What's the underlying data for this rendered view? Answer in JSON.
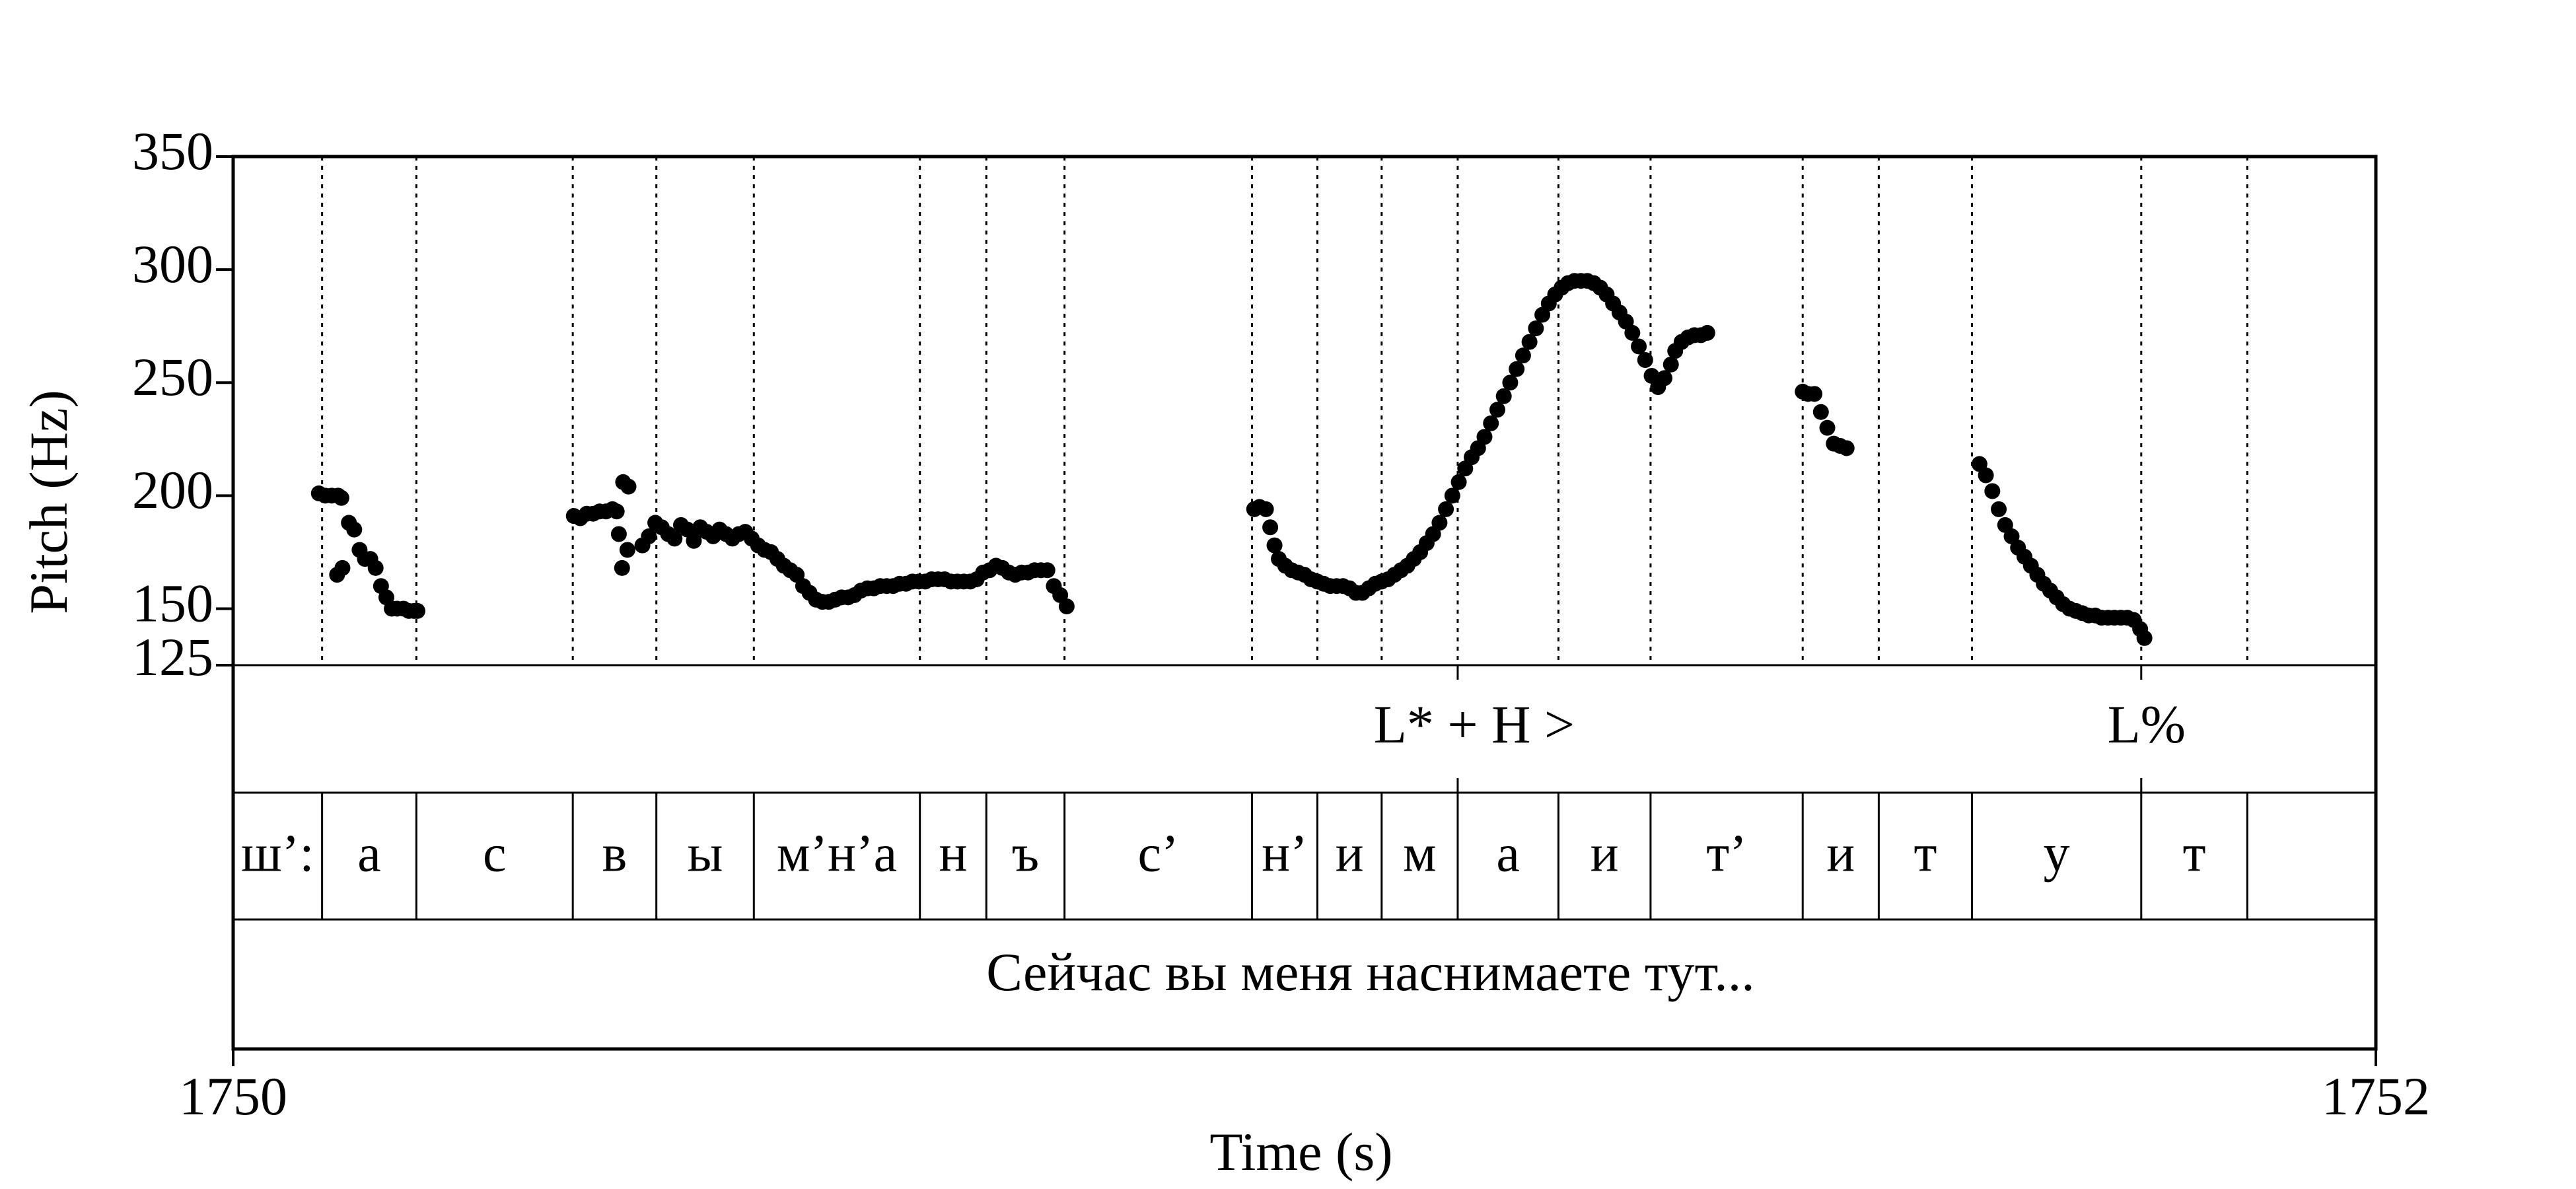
{
  "chart_data": {
    "type": "scatter",
    "title": "",
    "xlabel": "Time (s)",
    "ylabel": "Pitch (Hz)",
    "xlim": [
      1750,
      1752
    ],
    "ylim": [
      125,
      350
    ],
    "x_ticks": [
      "1750",
      "1752"
    ],
    "y_ticks": [
      {
        "value": 350,
        "label": "350"
      },
      {
        "value": 300,
        "label": "300"
      },
      {
        "value": 250,
        "label": "250"
      },
      {
        "value": 200,
        "label": "200"
      },
      {
        "value": 150,
        "label": "150"
      },
      {
        "value": 125,
        "label": "125"
      }
    ],
    "boundaries": [
      1750.0,
      1750.083,
      1750.171,
      1750.317,
      1750.395,
      1750.486,
      1750.641,
      1750.703,
      1750.776,
      1750.951,
      1751.012,
      1751.072,
      1751.143,
      1751.237,
      1751.323,
      1751.465,
      1751.536,
      1751.623,
      1751.781,
      1751.88
    ],
    "tiers": {
      "tones": [
        {
          "time": 1751.143,
          "label": "L* + H >"
        },
        {
          "time": 1751.781,
          "label": "L%"
        }
      ],
      "phones": [
        "ш’:",
        "а",
        "с",
        "в",
        "ы",
        "м’н’а",
        "н",
        "ъ",
        "с’",
        "н’",
        "и",
        "м",
        "а",
        "и",
        "т’",
        "и",
        "т",
        "у",
        "т"
      ],
      "sentence": "Сейчас вы меня наснимаете тут..."
    },
    "series": [
      {
        "segments": [
          {
            "x": [
              1750.08,
              1750.086,
              1750.092,
              1750.098,
              1750.101
            ],
            "y": [
              201,
              200,
              200,
              200,
              199
            ]
          },
          {
            "x": [
              1750.097,
              1750.102,
              1750.108,
              1750.113,
              1750.118,
              1750.123,
              1750.128,
              1750.133,
              1750.138,
              1750.143,
              1750.148,
              1750.153,
              1750.159,
              1750.164,
              1750.169,
              1750.172
            ],
            "y": [
              165,
              168,
              188,
              185,
              176,
              172,
              172,
              168,
              160,
              155,
              150,
              150,
              150,
              149,
              149,
              149
            ]
          },
          {
            "x": [
              1750.318,
              1750.324,
              1750.33,
              1750.336,
              1750.342,
              1750.348,
              1750.354,
              1750.358
            ],
            "y": [
              191,
              190,
              192,
              192,
              193,
              193,
              194,
              193
            ]
          },
          {
            "x": [
              1750.36,
              1750.363,
              1750.368
            ],
            "y": [
              183,
              168,
              176
            ]
          },
          {
            "x": [
              1750.364,
              1750.369
            ],
            "y": [
              206,
              204
            ]
          },
          {
            "x": [
              1750.382,
              1750.388,
              1750.394,
              1750.4,
              1750.406,
              1750.412,
              1750.418,
              1750.424,
              1750.43,
              1750.436,
              1750.442,
              1750.448,
              1750.454,
              1750.46,
              1750.466,
              1750.472,
              1750.478,
              1750.484,
              1750.49,
              1750.496,
              1750.502,
              1750.508,
              1750.514,
              1750.52,
              1750.526,
              1750.532,
              1750.538,
              1750.544,
              1750.55,
              1750.556,
              1750.562,
              1750.568,
              1750.574,
              1750.58,
              1750.586,
              1750.592,
              1750.598,
              1750.604,
              1750.61,
              1750.616,
              1750.622,
              1750.628,
              1750.634,
              1750.64,
              1750.646,
              1750.652,
              1750.658,
              1750.664,
              1750.67,
              1750.676,
              1750.682,
              1750.688,
              1750.694,
              1750.7,
              1750.706,
              1750.712,
              1750.718,
              1750.724,
              1750.73,
              1750.736,
              1750.742,
              1750.748,
              1750.754,
              1750.76,
              1750.766,
              1750.772,
              1750.778
            ],
            "y": [
              178,
              182,
              188,
              186,
              183,
              181,
              187,
              185,
              180,
              186,
              184,
              182,
              185,
              183,
              181,
              183,
              184,
              181,
              178,
              176,
              175,
              172,
              169,
              167,
              165,
              160,
              157,
              154,
              153,
              153,
              154,
              155,
              155,
              156,
              158,
              159,
              159,
              160,
              160,
              160,
              161,
              161,
              162,
              162,
              162,
              163,
              163,
              163,
              162,
              162,
              162,
              162,
              163,
              166,
              167,
              169,
              168,
              166,
              165,
              166,
              166,
              167,
              167,
              167,
              160,
              156,
              151
            ]
          }
        ]
      },
      {
        "segments": [
          {
            "x": [
              1750.953,
              1750.958,
              1750.964,
              1750.968,
              1750.972,
              1750.976,
              1750.982,
              1750.988,
              1750.994,
              1751.0,
              1751.006,
              1751.012,
              1751.018,
              1751.024,
              1751.03,
              1751.036,
              1751.042,
              1751.048,
              1751.054,
              1751.06,
              1751.066,
              1751.072,
              1751.078,
              1751.084,
              1751.09,
              1751.096,
              1751.102,
              1751.108,
              1751.114,
              1751.12,
              1751.126,
              1751.132,
              1751.138,
              1751.144,
              1751.15,
              1751.156,
              1751.162,
              1751.168,
              1751.174,
              1751.18,
              1751.186,
              1751.192,
              1751.198,
              1751.204,
              1751.21,
              1751.216,
              1751.222,
              1751.228,
              1751.234,
              1751.24,
              1751.246,
              1751.252,
              1751.258,
              1751.264,
              1751.27,
              1751.276,
              1751.282,
              1751.288,
              1751.294,
              1751.3,
              1751.306,
              1751.312,
              1751.318,
              1751.324,
              1751.33,
              1751.336,
              1751.342
            ],
            "y": [
              194,
              195,
              194,
              186,
              178,
              172,
              169,
              167,
              166,
              165,
              163,
              162,
              161,
              160,
              160,
              160,
              159,
              157,
              157,
              159,
              161,
              162,
              163,
              165,
              167,
              169,
              172,
              175,
              179,
              183,
              188,
              194,
              200,
              206,
              212,
              217,
              221,
              226,
              232,
              238,
              244,
              250,
              256,
              262,
              268,
              274,
              280,
              285,
              289,
              292,
              294,
              295,
              295,
              295,
              294,
              292,
              289,
              285,
              281,
              277,
              272,
              266,
              260,
              253,
              248,
              252,
              258
            ]
          },
          {
            "x": [
              1751.346,
              1751.352,
              1751.358,
              1751.364,
              1751.37,
              1751.376
            ],
            "y": [
              264,
              268,
              270,
              271,
              271,
              272
            ]
          },
          {
            "x": [
              1751.465,
              1751.47,
              1751.476,
              1751.482,
              1751.488,
              1751.494,
              1751.5,
              1751.506
            ],
            "y": [
              246,
              245,
              245,
              237,
              230,
              223,
              222,
              221
            ]
          },
          {
            "x": [
              1751.63,
              1751.636,
              1751.642,
              1751.648,
              1751.654,
              1751.66,
              1751.666,
              1751.672,
              1751.678,
              1751.684,
              1751.69,
              1751.696,
              1751.702,
              1751.708,
              1751.714,
              1751.72,
              1751.726,
              1751.732,
              1751.738,
              1751.744,
              1751.75,
              1751.756,
              1751.762,
              1751.768,
              1751.774,
              1751.78,
              1751.784
            ],
            "y": [
              214,
              209,
              202,
              194,
              187,
              182,
              177,
              173,
              169,
              165,
              161,
              158,
              155,
              152,
              150,
              149,
              148,
              147,
              147,
              146,
              146,
              146,
              146,
              146,
              145,
              141,
              137
            ]
          }
        ]
      }
    ]
  }
}
